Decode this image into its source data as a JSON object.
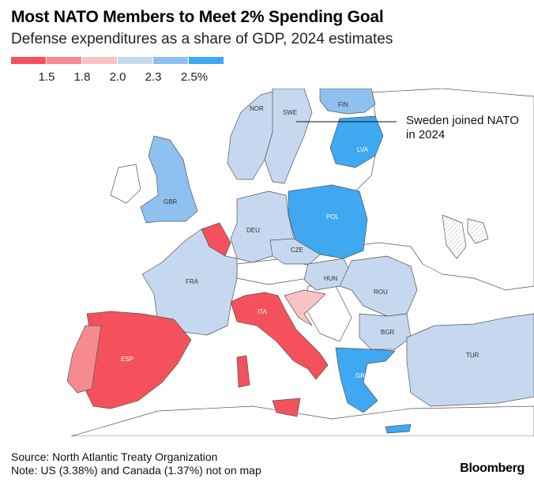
{
  "header": {
    "title": "Most NATO Members to Meet 2% Spending Goal",
    "subtitle": "Defense expenditures as a share of GDP, 2024 estimates"
  },
  "legend": {
    "bins": [
      {
        "color": "#f4515c"
      },
      {
        "color": "#f78a8e"
      },
      {
        "color": "#fbc2c3"
      },
      {
        "color": "#c6d8ef"
      },
      {
        "color": "#8ec1f0"
      },
      {
        "color": "#3ea8f0"
      }
    ],
    "labels": [
      "1.5",
      "1.8",
      "2.0",
      "2.3",
      "2.5%"
    ]
  },
  "colors": {
    "bin1": "#f4515c",
    "bin2": "#f78a8e",
    "bin3": "#fbc2c3",
    "bin4": "#c6d8ef",
    "bin5": "#8ec1f0",
    "bin6": "#3ea8f0",
    "non_nato": "#ffffff",
    "border": "#555555"
  },
  "map": {
    "countries": [
      {
        "code": "NOR",
        "label": "NOR",
        "bin": 4
      },
      {
        "code": "SWE",
        "label": "SWE",
        "bin": 4
      },
      {
        "code": "FIN",
        "label": "FIN",
        "bin": 5
      },
      {
        "code": "LVA",
        "label": "LVA",
        "bin": 6
      },
      {
        "code": "GBR",
        "label": "GBR",
        "bin": 5
      },
      {
        "code": "DEU",
        "label": "DEU",
        "bin": 4
      },
      {
        "code": "POL",
        "label": "POL",
        "bin": 6
      },
      {
        "code": "CZE",
        "label": "CZE",
        "bin": 4
      },
      {
        "code": "FRA",
        "label": "FRA",
        "bin": 4
      },
      {
        "code": "HUN",
        "label": "HUN",
        "bin": 4
      },
      {
        "code": "ROU",
        "label": "ROU",
        "bin": 4
      },
      {
        "code": "ITA",
        "label": "ITA",
        "bin": 1
      },
      {
        "code": "BGR",
        "label": "BGR",
        "bin": 4
      },
      {
        "code": "ESP",
        "label": "ESP",
        "bin": 1
      },
      {
        "code": "TUR",
        "label": "TUR",
        "bin": 4
      },
      {
        "code": "GRC",
        "label": "GRC",
        "bin": 6
      }
    ],
    "annotation": "Sweden joined NATO in 2024"
  },
  "footer": {
    "source": "Source: North Atlantic Treaty Organization",
    "note": "Note: US (3.38%) and Canada (1.37%) not on map",
    "brand": "Bloomberg"
  }
}
